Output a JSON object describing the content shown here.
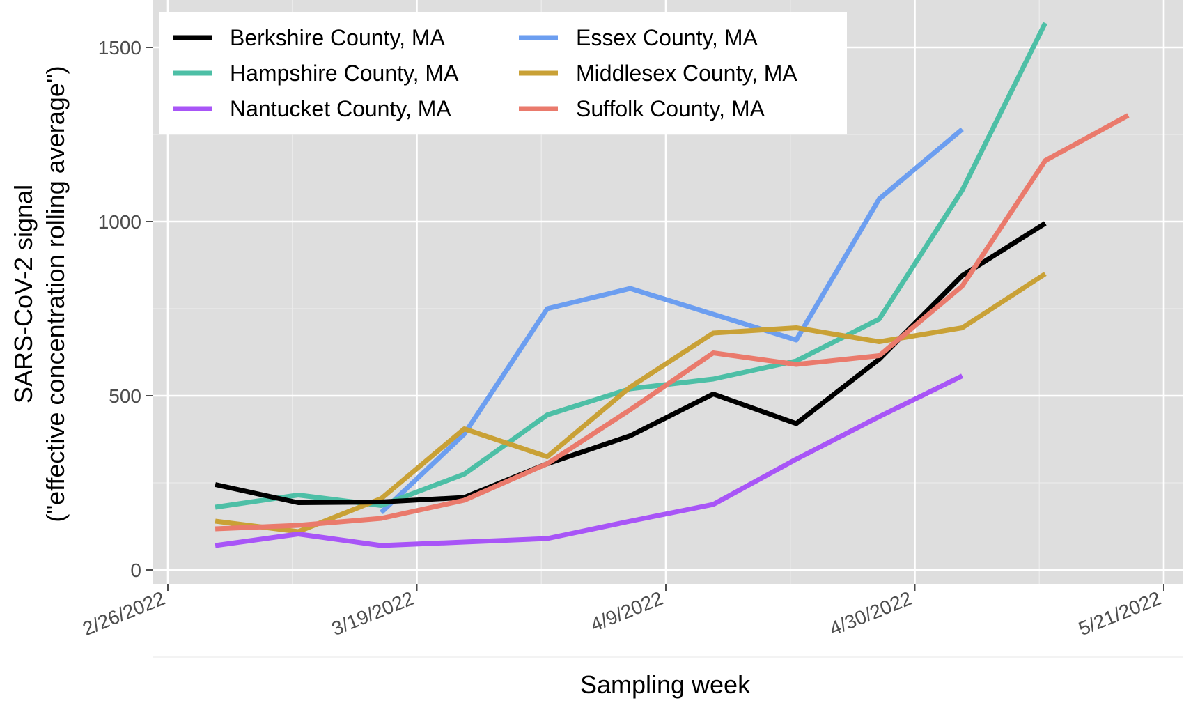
{
  "chart_data": {
    "type": "line",
    "xlabel": "Sampling week",
    "ylabel_line1": "SARS-CoV-2 signal",
    "ylabel_line2": "(\"effective concentration rolling average\")",
    "x_ticks": [
      "2/26/2022",
      "3/19/2022",
      "4/9/2022",
      "4/30/2022",
      "5/21/2022"
    ],
    "y_ticks": [
      0,
      500,
      1000,
      1500
    ],
    "ylim": [
      -40,
      1620
    ],
    "xlim": [
      "2022-02-26",
      "2022-05-21"
    ],
    "grid": true,
    "legend_position": "top-left",
    "series": [
      {
        "name": "Berkshire County, MA",
        "color": "#000000",
        "x": [
          "2022-03-02",
          "2022-03-09",
          "2022-03-16",
          "2022-03-23",
          "2022-03-30",
          "2022-04-06",
          "2022-04-13",
          "2022-04-20",
          "2022-04-27",
          "2022-05-04",
          "2022-05-11"
        ],
        "y": [
          245,
          193,
          195,
          208,
          305,
          385,
          505,
          420,
          605,
          845,
          995
        ]
      },
      {
        "name": "Essex County, MA",
        "color": "#6c9ef0",
        "x": [
          "2022-03-16",
          "2022-03-23",
          "2022-03-30",
          "2022-04-06",
          "2022-04-20",
          "2022-04-27",
          "2022-05-04"
        ],
        "y": [
          165,
          390,
          750,
          808,
          660,
          1065,
          1265
        ]
      },
      {
        "name": "Hampshire County, MA",
        "color": "#4dbfa6",
        "x": [
          "2022-03-02",
          "2022-03-09",
          "2022-03-16",
          "2022-03-23",
          "2022-03-30",
          "2022-04-06",
          "2022-04-13",
          "2022-04-20",
          "2022-04-27",
          "2022-05-04",
          "2022-05-11"
        ],
        "y": [
          180,
          215,
          185,
          275,
          445,
          520,
          548,
          600,
          720,
          1090,
          1570
        ]
      },
      {
        "name": "Middlesex County, MA",
        "color": "#c9a136",
        "x": [
          "2022-03-02",
          "2022-03-09",
          "2022-03-16",
          "2022-03-23",
          "2022-03-30",
          "2022-04-06",
          "2022-04-13",
          "2022-04-20",
          "2022-04-27",
          "2022-05-04",
          "2022-05-11"
        ],
        "y": [
          140,
          110,
          205,
          405,
          325,
          525,
          680,
          695,
          655,
          695,
          850
        ]
      },
      {
        "name": "Nantucket County, MA",
        "color": "#a855f7",
        "x": [
          "2022-03-02",
          "2022-03-09",
          "2022-03-16",
          "2022-03-23",
          "2022-03-30",
          "2022-04-06",
          "2022-04-13",
          "2022-04-20",
          "2022-04-27",
          "2022-05-04"
        ],
        "y": [
          70,
          103,
          70,
          80,
          90,
          140,
          188,
          318,
          440,
          557
        ]
      },
      {
        "name": "Suffolk County, MA",
        "color": "#ea7a6c",
        "x": [
          "2022-03-02",
          "2022-03-09",
          "2022-03-16",
          "2022-03-23",
          "2022-03-30",
          "2022-04-06",
          "2022-04-13",
          "2022-04-20",
          "2022-04-27",
          "2022-05-04",
          "2022-05-11",
          "2022-05-18"
        ],
        "y": [
          118,
          128,
          148,
          200,
          305,
          460,
          623,
          590,
          615,
          815,
          1175,
          1305
        ]
      }
    ]
  }
}
